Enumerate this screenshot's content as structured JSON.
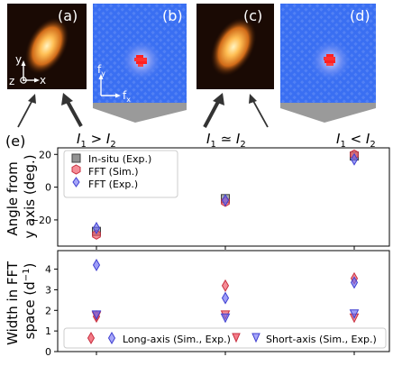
{
  "panels": {
    "a": "(a)",
    "b": "(b)",
    "c": "(c)",
    "d": "(d)",
    "e": "(e)",
    "axis_y": "y",
    "axis_z": "z",
    "axis_x": "x",
    "fft_y": "f",
    "fft_y_sub": "y",
    "fft_x": "f",
    "fft_x_sub": "x"
  },
  "conditions": [
    {
      "left": "I",
      "sub1": "1",
      "op": " > ",
      "right": "I",
      "sub2": "2"
    },
    {
      "left": "I",
      "sub1": "1",
      "op": " ≃ ",
      "right": "I",
      "sub2": "2"
    },
    {
      "left": "I",
      "sub1": "1",
      "op": " < ",
      "right": "I",
      "sub2": "2"
    }
  ],
  "colors": {
    "gray": "#808080",
    "red": "#f05060",
    "blue": "#6a6af5",
    "fft_bg": "#3a6ff2"
  },
  "chart_data": [
    {
      "type": "scatter",
      "ylabel_line1": "Angle from",
      "ylabel_line2": "y axis (deg.)",
      "ylim": [
        -36,
        24
      ],
      "yticks": [
        "20",
        "0",
        "−20"
      ],
      "ytick_values": [
        20,
        0,
        -20
      ],
      "x": [
        0,
        1,
        2
      ],
      "legend_position": "upper-left",
      "series": [
        {
          "name": "In-situ (Exp.)",
          "marker": "square",
          "color": "#808080",
          "values": [
            -27,
            -7,
            19
          ]
        },
        {
          "name": "FFT (Sim.)",
          "marker": "hexagon",
          "color": "#f05060",
          "values": [
            -29,
            -9,
            20
          ]
        },
        {
          "name": "FFT (Exp.)",
          "marker": "diamond",
          "color": "#6a6af5",
          "values": [
            -25,
            -8,
            17
          ]
        }
      ]
    },
    {
      "type": "scatter",
      "ylabel_line1": "Width in FFT",
      "ylabel_line2": "space (d",
      "ylabel_sup": "−1",
      "ylabel_end": ")",
      "ylim": [
        0,
        4.9
      ],
      "yticks": [
        "4",
        "3",
        "2",
        "1",
        "0"
      ],
      "ytick_values": [
        4,
        3,
        2,
        1,
        0
      ],
      "x": [
        0,
        1,
        2
      ],
      "legend_position": "bottom",
      "series": [
        {
          "name": "Long-axis (Sim.)",
          "marker": "diamond",
          "color": "#f05060",
          "values": [
            1.7,
            3.2,
            3.55
          ]
        },
        {
          "name": "Long-axis (Exp.)",
          "marker": "diamond",
          "color": "#6a6af5",
          "values": [
            4.2,
            2.6,
            3.35
          ]
        },
        {
          "name": "Short-axis (Sim.)",
          "marker": "triangle-down",
          "color": "#f05060",
          "values": [
            1.75,
            1.8,
            1.65
          ]
        },
        {
          "name": "Short-axis (Exp.)",
          "marker": "triangle-down",
          "color": "#6a6af5",
          "values": [
            1.8,
            1.65,
            1.85
          ]
        }
      ],
      "legend_labels": [
        "Long-axis (Sim., Exp.)",
        "Short-axis (Sim., Exp.)"
      ]
    }
  ]
}
